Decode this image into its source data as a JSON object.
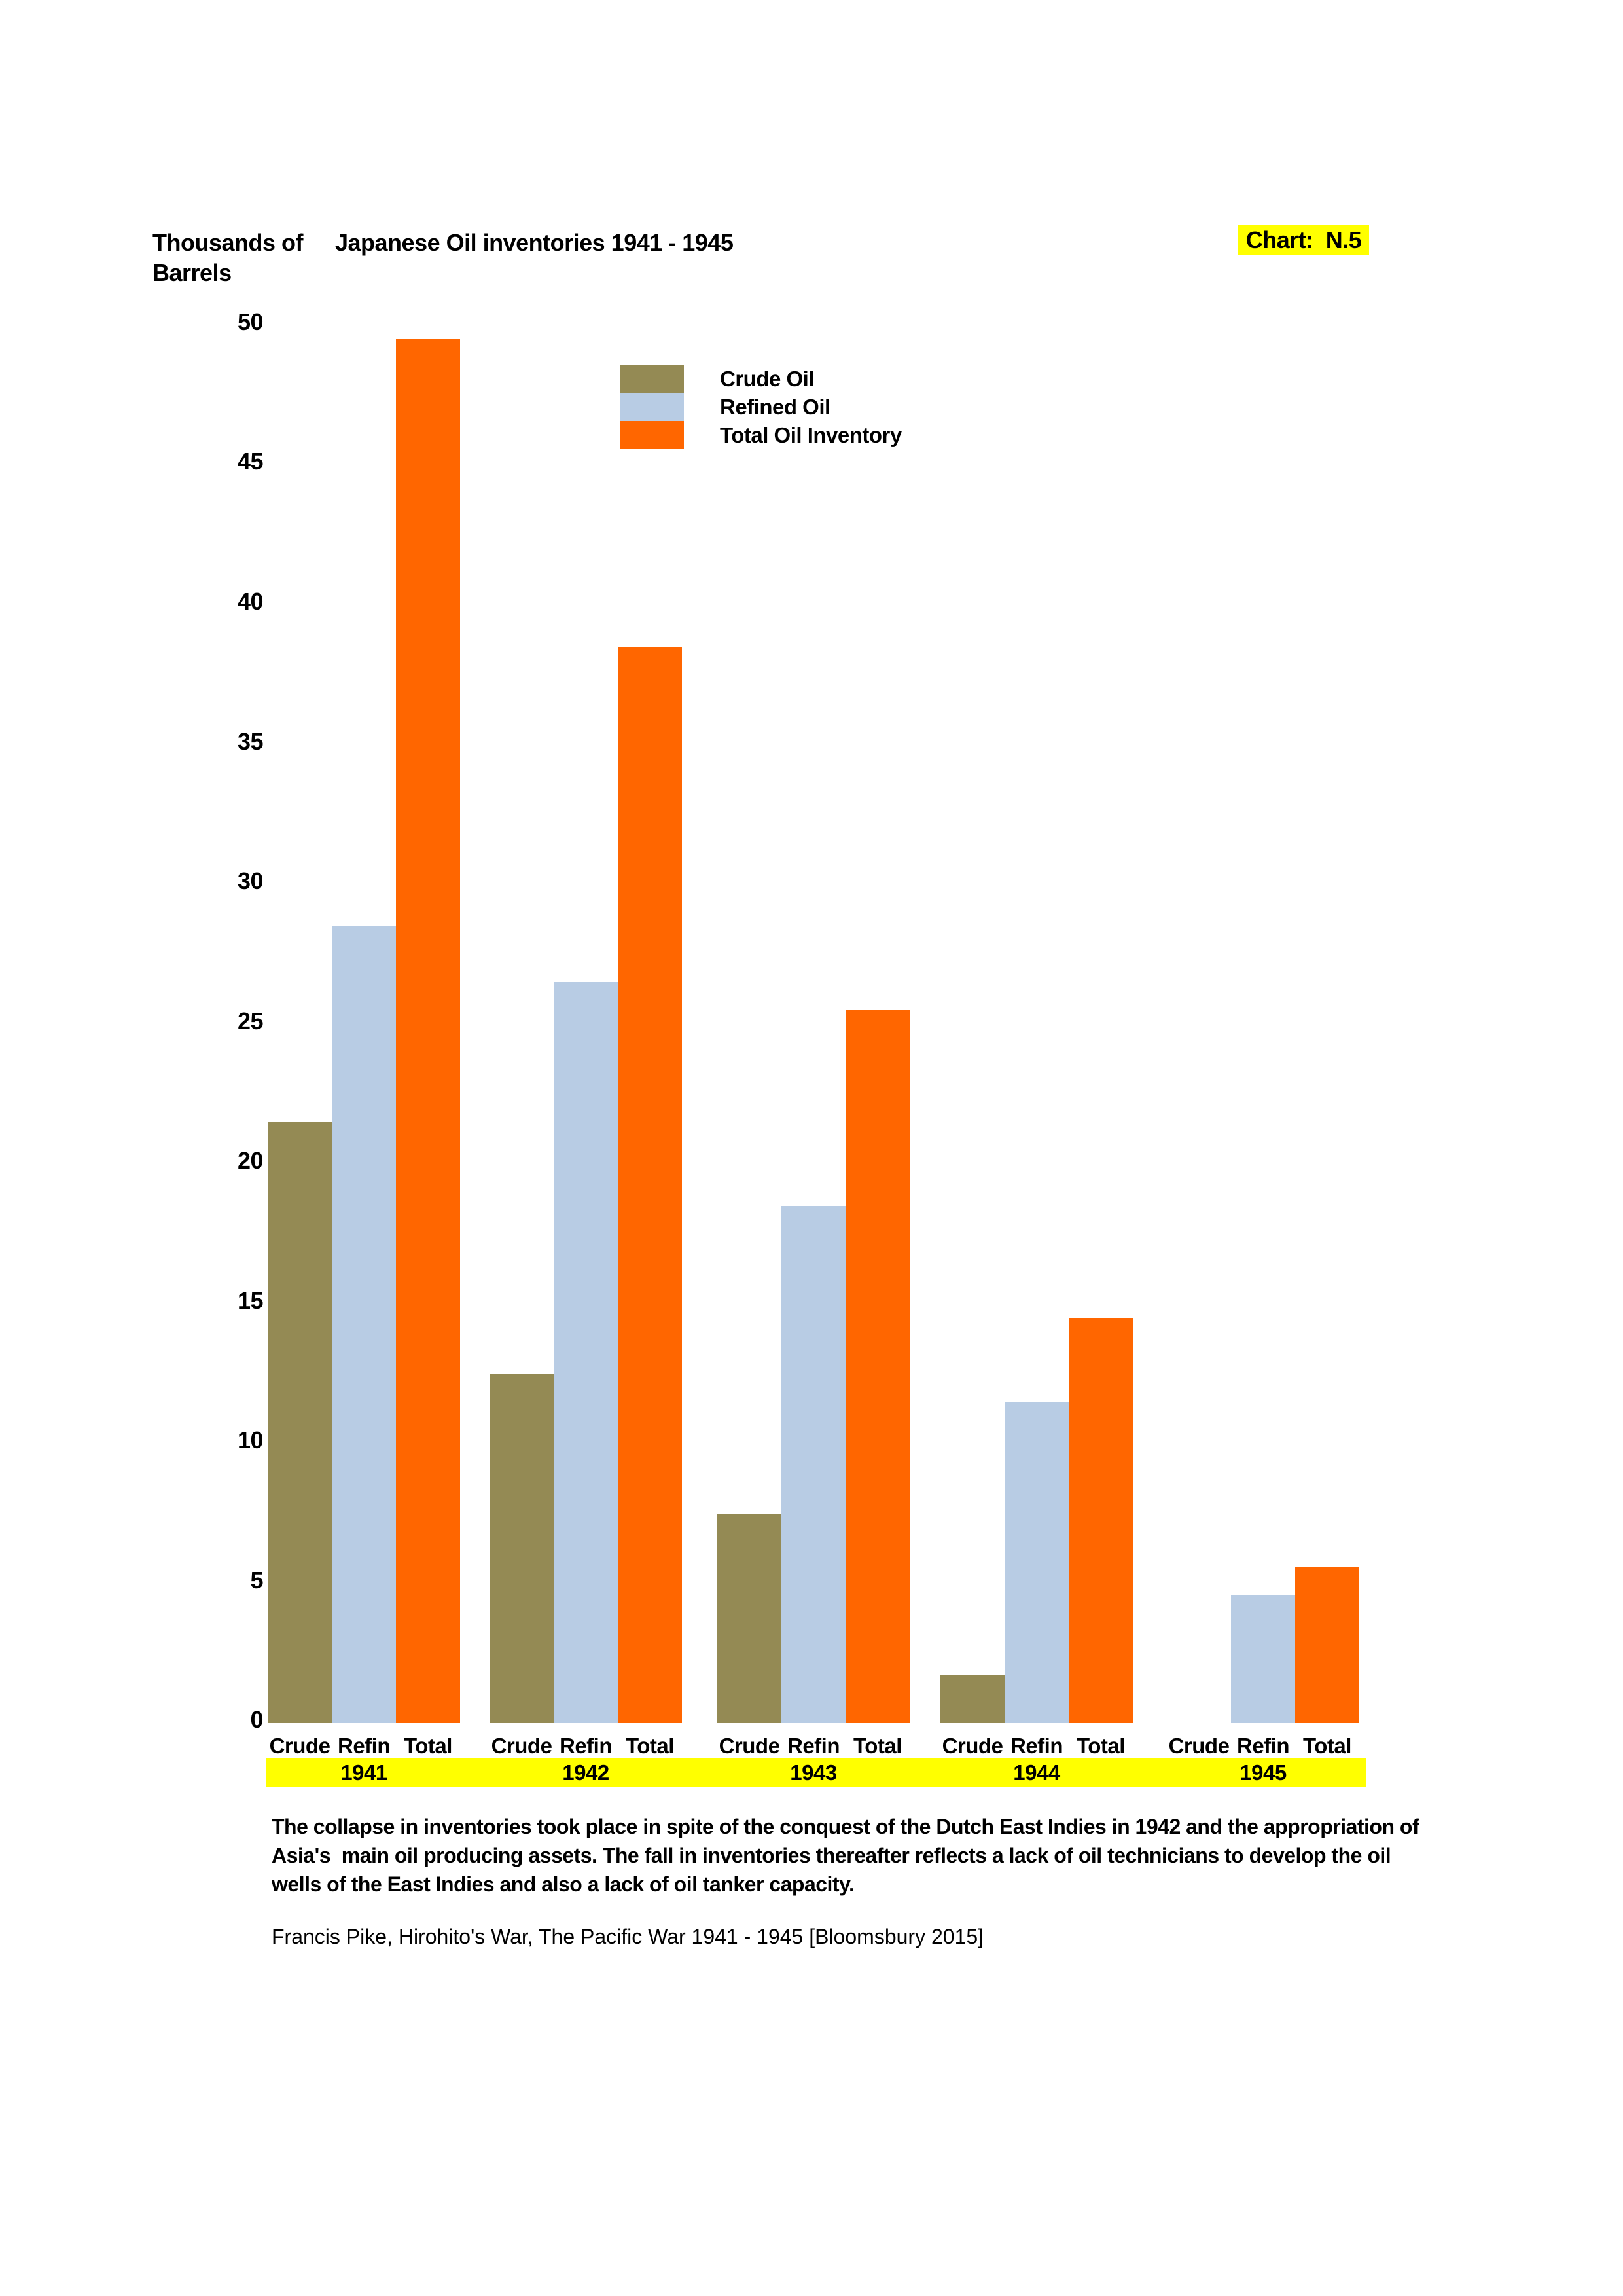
{
  "header": {
    "y_axis_unit_line1": "Thousands of",
    "y_axis_unit_line2": "Barrels",
    "title": "Japanese Oil inventories 1941 - 1945",
    "chart_ref": "Chart:  N.5",
    "chart_ref_bg": "#FFFF00"
  },
  "legend": {
    "items": [
      {
        "label": "Crude Oil",
        "color": "#948A54"
      },
      {
        "label": "Refined Oil",
        "color": "#B8CCE4"
      },
      {
        "label": "Total Oil Inventory",
        "color": "#FF6600"
      }
    ]
  },
  "chart_data": {
    "type": "bar",
    "title": "Japanese Oil inventories 1941 - 1945",
    "ylabel": "Thousands of Barrels",
    "xlabel": "",
    "categories": [
      "1941",
      "1942",
      "1943",
      "1944",
      "1945"
    ],
    "bar_sublabels": [
      "Crude",
      "Refin",
      "Total"
    ],
    "series": [
      {
        "name": "Crude Oil",
        "color": "#948A54",
        "values": [
          21.5,
          12.5,
          7.5,
          1.7,
          0
        ]
      },
      {
        "name": "Refined Oil",
        "color": "#B8CCE4",
        "values": [
          28.5,
          26.5,
          18.5,
          11.5,
          4.6
        ]
      },
      {
        "name": "Total Oil Inventory",
        "color": "#FF6600",
        "values": [
          49.5,
          38.5,
          25.5,
          14.5,
          5.6
        ]
      }
    ],
    "ylim": [
      0,
      50
    ],
    "ytick_step": 5,
    "grid": false,
    "legend_position": "top-center",
    "category_band_color": "#FFFF00"
  },
  "footer": {
    "note_lines": [
      "The collapse in inventories took place in spite of the conquest of the Dutch East Indies in 1942 and the appropriation of",
      "Asia's  main oil producing assets. The fall in inventories thereafter reflects a lack of oil technicians to develop the oil",
      "wells of the East Indies and also a lack of oil tanker capacity."
    ],
    "citation": "Francis Pike, Hirohito's War, The Pacific War 1941 - 1945 [Bloomsbury 2015]"
  }
}
